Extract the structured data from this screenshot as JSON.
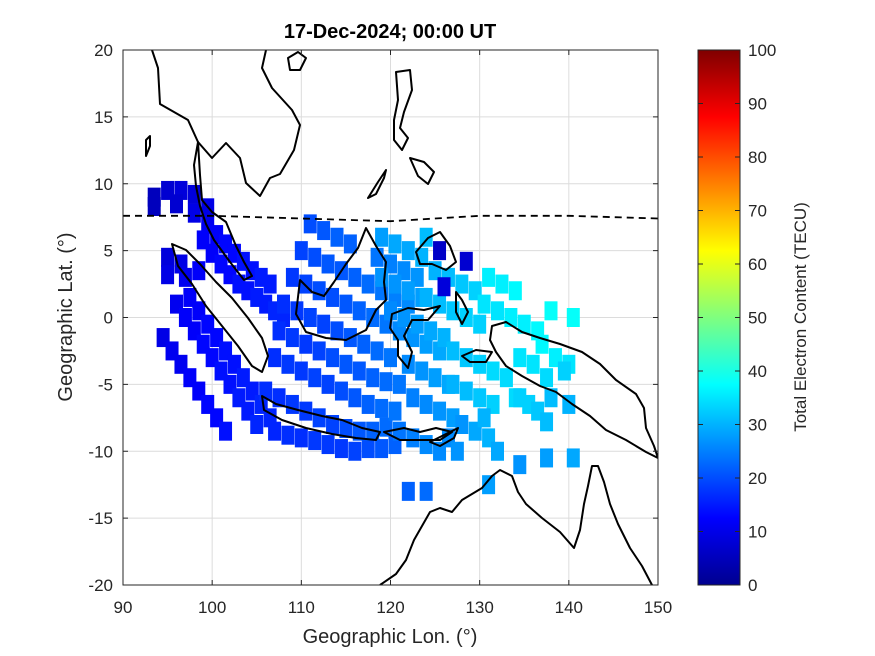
{
  "chart_data": {
    "type": "heatmap",
    "title": "17-Dec-2024; 00:00 UT",
    "xlabel": "Geographic Lon. (°)",
    "ylabel": "Geographic Lat. (°)",
    "xlim": [
      90,
      150
    ],
    "ylim": [
      -20,
      20
    ],
    "xticks": [
      "90",
      "100",
      "110",
      "120",
      "130",
      "140",
      "150"
    ],
    "yticks": [
      "20",
      "15",
      "10",
      "5",
      "0",
      "-5",
      "-10",
      "-15",
      "-20"
    ],
    "grid": true,
    "colorbar": {
      "label": "Total Electron Content (TECU)",
      "range": [
        0,
        100
      ],
      "ticks": [
        "100",
        "90",
        "80",
        "70",
        "60",
        "50",
        "40",
        "30",
        "20",
        "10",
        "0"
      ],
      "colormap": "jet"
    },
    "dip_equator": [
      [
        90,
        7.6
      ],
      [
        100,
        7.6
      ],
      [
        110,
        7.4
      ],
      [
        120,
        7.2
      ],
      [
        130,
        7.6
      ],
      [
        140,
        7.6
      ],
      [
        150,
        7.4
      ]
    ],
    "tec_cells": [
      [
        93.5,
        9.0,
        6
      ],
      [
        95,
        9.5,
        8
      ],
      [
        96.5,
        9.5,
        9
      ],
      [
        98,
        9.2,
        9
      ],
      [
        99.5,
        8.2,
        10
      ],
      [
        93.5,
        8.3,
        6
      ],
      [
        96,
        8.5,
        8
      ],
      [
        98,
        7.8,
        10
      ],
      [
        95,
        4.5,
        9
      ],
      [
        96.5,
        4.0,
        10
      ],
      [
        95,
        3.2,
        10
      ],
      [
        97,
        3.0,
        11
      ],
      [
        98.5,
        3.5,
        12
      ],
      [
        99.5,
        7.0,
        11
      ],
      [
        100.5,
        6.2,
        12
      ],
      [
        101.5,
        5.5,
        13
      ],
      [
        102.5,
        4.8,
        13
      ],
      [
        103.5,
        4.2,
        14
      ],
      [
        104.5,
        3.5,
        14
      ],
      [
        105.5,
        3.0,
        15
      ],
      [
        106.5,
        2.5,
        15
      ],
      [
        99,
        5.8,
        12
      ],
      [
        100,
        4.8,
        12
      ],
      [
        101,
        4.0,
        13
      ],
      [
        102,
        3.2,
        13
      ],
      [
        103,
        2.5,
        14
      ],
      [
        104,
        2.0,
        14
      ],
      [
        105,
        1.5,
        15
      ],
      [
        106,
        1.0,
        15
      ],
      [
        107,
        0.5,
        16
      ],
      [
        108,
        0.0,
        16
      ],
      [
        97.5,
        1.5,
        12
      ],
      [
        98.5,
        0.5,
        12
      ],
      [
        99.5,
        -0.5,
        13
      ],
      [
        100.5,
        -1.5,
        13
      ],
      [
        101.5,
        -2.5,
        14
      ],
      [
        102.5,
        -3.5,
        14
      ],
      [
        103.5,
        -4.5,
        15
      ],
      [
        104.5,
        -5.5,
        15
      ],
      [
        105.5,
        -6.5,
        16
      ],
      [
        106.5,
        -7.5,
        16
      ],
      [
        96,
        1.0,
        11
      ],
      [
        97,
        0.0,
        12
      ],
      [
        98,
        -1.0,
        12
      ],
      [
        99,
        -2.0,
        13
      ],
      [
        100,
        -3.0,
        13
      ],
      [
        101,
        -4.0,
        14
      ],
      [
        102,
        -5.0,
        14
      ],
      [
        103,
        -6.0,
        15
      ],
      [
        104,
        -7.0,
        15
      ],
      [
        105,
        -8.0,
        16
      ],
      [
        94.5,
        -1.5,
        10
      ],
      [
        95.5,
        -2.5,
        11
      ],
      [
        96.5,
        -3.5,
        11
      ],
      [
        97.5,
        -4.5,
        12
      ],
      [
        98.5,
        -5.5,
        12
      ],
      [
        99.5,
        -6.5,
        13
      ],
      [
        100.5,
        -7.5,
        13
      ],
      [
        101.5,
        -8.5,
        14
      ],
      [
        107,
        -8.5,
        16
      ],
      [
        108.5,
        -8.8,
        17
      ],
      [
        110,
        -9.0,
        17
      ],
      [
        111.5,
        -9.2,
        18
      ],
      [
        113,
        -9.5,
        18
      ],
      [
        114.5,
        -9.8,
        18
      ],
      [
        116,
        -10.0,
        19
      ],
      [
        117.5,
        -9.8,
        20
      ],
      [
        119,
        -9.8,
        21
      ],
      [
        120.5,
        -9.5,
        22
      ],
      [
        106,
        -5.5,
        17
      ],
      [
        107.5,
        -6.0,
        17
      ],
      [
        109,
        -6.5,
        18
      ],
      [
        110.5,
        -7.0,
        18
      ],
      [
        112,
        -7.5,
        19
      ],
      [
        113.5,
        -8.0,
        19
      ],
      [
        115,
        -8.3,
        20
      ],
      [
        116.5,
        -8.5,
        21
      ],
      [
        118,
        -8.5,
        22
      ],
      [
        119.5,
        -8.2,
        23
      ],
      [
        107,
        -3.0,
        17
      ],
      [
        108.5,
        -3.5,
        18
      ],
      [
        110,
        -4.0,
        18
      ],
      [
        111.5,
        -4.5,
        19
      ],
      [
        113,
        -5.0,
        19
      ],
      [
        114.5,
        -5.5,
        20
      ],
      [
        116,
        -6.0,
        21
      ],
      [
        117.5,
        -6.5,
        22
      ],
      [
        119,
        -6.8,
        23
      ],
      [
        120.5,
        -7.0,
        24
      ],
      [
        107.5,
        -1.0,
        17
      ],
      [
        109,
        -1.5,
        18
      ],
      [
        110.5,
        -2.0,
        18
      ],
      [
        112,
        -2.5,
        19
      ],
      [
        113.5,
        -3.0,
        20
      ],
      [
        115,
        -3.5,
        21
      ],
      [
        116.5,
        -4.0,
        21
      ],
      [
        118,
        -4.5,
        22
      ],
      [
        119.5,
        -4.8,
        23
      ],
      [
        121,
        -5.0,
        24
      ],
      [
        108,
        1.0,
        17
      ],
      [
        109.5,
        0.5,
        18
      ],
      [
        111,
        0.0,
        19
      ],
      [
        112.5,
        -0.5,
        19
      ],
      [
        114,
        -1.0,
        20
      ],
      [
        115.5,
        -1.5,
        21
      ],
      [
        117,
        -2.0,
        22
      ],
      [
        118.5,
        -2.5,
        23
      ],
      [
        120,
        -3.0,
        24
      ],
      [
        109,
        3.0,
        18
      ],
      [
        110.5,
        2.5,
        19
      ],
      [
        112,
        2.0,
        20
      ],
      [
        113.5,
        1.5,
        20
      ],
      [
        115,
        1.0,
        21
      ],
      [
        116.5,
        0.5,
        22
      ],
      [
        118,
        0.0,
        23
      ],
      [
        119.5,
        -0.5,
        24
      ],
      [
        121,
        -1.0,
        25
      ],
      [
        110,
        5.0,
        19
      ],
      [
        111.5,
        4.5,
        20
      ],
      [
        113,
        4.0,
        21
      ],
      [
        114.5,
        3.5,
        21
      ],
      [
        116,
        3.0,
        22
      ],
      [
        117.5,
        2.5,
        23
      ],
      [
        119,
        2.0,
        24
      ],
      [
        120.5,
        1.5,
        25
      ],
      [
        122,
        1.0,
        26
      ],
      [
        111,
        7.0,
        20
      ],
      [
        112.5,
        6.5,
        21
      ],
      [
        114,
        6.0,
        22
      ],
      [
        115.5,
        5.5,
        22
      ],
      [
        118.5,
        4.5,
        24
      ],
      [
        120,
        4.0,
        25
      ],
      [
        121.5,
        3.5,
        26
      ],
      [
        123,
        3.0,
        27
      ],
      [
        119,
        6.0,
        28
      ],
      [
        120.5,
        5.5,
        29
      ],
      [
        122,
        5.0,
        29
      ],
      [
        123.5,
        4.5,
        30
      ],
      [
        119,
        3.0,
        27
      ],
      [
        120.5,
        2.5,
        27
      ],
      [
        122,
        2.0,
        28
      ],
      [
        123.5,
        1.5,
        28
      ],
      [
        121,
        -1.0,
        26
      ],
      [
        122.5,
        -1.5,
        27
      ],
      [
        124,
        -2.0,
        28
      ],
      [
        125.5,
        -2.5,
        29
      ],
      [
        122,
        -3.5,
        26
      ],
      [
        123.5,
        -4.0,
        27
      ],
      [
        125,
        -4.5,
        28
      ],
      [
        126.5,
        -5.0,
        29
      ],
      [
        120,
        0.5,
        26
      ],
      [
        121.5,
        0.0,
        27
      ],
      [
        123,
        -0.5,
        28
      ],
      [
        124.5,
        -1.0,
        29
      ],
      [
        126,
        -1.5,
        30
      ],
      [
        124,
        1.5,
        30
      ],
      [
        125.5,
        1.0,
        31
      ],
      [
        127,
        0.5,
        32
      ],
      [
        128.5,
        0.0,
        33
      ],
      [
        130,
        -0.5,
        33
      ],
      [
        125,
        3.5,
        30
      ],
      [
        126.5,
        3.0,
        31
      ],
      [
        128,
        2.5,
        32
      ],
      [
        129.5,
        2.0,
        33
      ],
      [
        125.5,
        5.0,
        7
      ],
      [
        128.5,
        4.2,
        8
      ],
      [
        126,
        2.3,
        9
      ],
      [
        124,
        6.0,
        31
      ],
      [
        127,
        -2.5,
        31
      ],
      [
        128.5,
        -3.0,
        32
      ],
      [
        130,
        -3.5,
        33
      ],
      [
        131.5,
        -4.0,
        34
      ],
      [
        133,
        -4.5,
        34
      ],
      [
        127,
        -5.0,
        30
      ],
      [
        128.5,
        -5.5,
        31
      ],
      [
        130,
        -6.0,
        32
      ],
      [
        131.5,
        -6.5,
        33
      ],
      [
        130.5,
        1.0,
        35
      ],
      [
        132,
        0.5,
        35
      ],
      [
        133.5,
        0.0,
        36
      ],
      [
        135,
        -0.5,
        36
      ],
      [
        136.5,
        -1.0,
        37
      ],
      [
        131,
        3.0,
        36
      ],
      [
        132.5,
        2.5,
        36
      ],
      [
        134,
        2.0,
        37
      ],
      [
        138,
        0.5,
        38
      ],
      [
        140.5,
        0.0,
        38
      ],
      [
        137,
        -2.0,
        37
      ],
      [
        138.5,
        -3.0,
        36
      ],
      [
        140,
        -3.5,
        35
      ],
      [
        134.5,
        -3.0,
        35
      ],
      [
        136,
        -3.5,
        35
      ],
      [
        137.5,
        -4.5,
        34
      ],
      [
        139.5,
        -4.0,
        33
      ],
      [
        134,
        -6.0,
        34
      ],
      [
        135.5,
        -6.5,
        33
      ],
      [
        138,
        -6.0,
        31
      ],
      [
        140,
        -6.5,
        30
      ],
      [
        122.5,
        -6.0,
        25
      ],
      [
        124,
        -6.5,
        26
      ],
      [
        125.5,
        -7.0,
        27
      ],
      [
        127,
        -7.5,
        28
      ],
      [
        128,
        -8.0,
        27
      ],
      [
        129.5,
        -8.5,
        29
      ],
      [
        131,
        -9.0,
        30
      ],
      [
        121,
        -8.5,
        24
      ],
      [
        122.5,
        -9.0,
        25
      ],
      [
        124,
        -9.5,
        26
      ],
      [
        125.5,
        -10.0,
        26
      ],
      [
        130.5,
        -7.5,
        30
      ],
      [
        134.5,
        -6.0,
        33
      ],
      [
        136.5,
        -7.0,
        32
      ],
      [
        137.5,
        -7.8,
        31
      ],
      [
        132,
        -10.0,
        29
      ],
      [
        134.5,
        -11.0,
        27
      ],
      [
        137.5,
        -10.5,
        28
      ],
      [
        140.5,
        -10.5,
        29
      ],
      [
        126.5,
        -9.0,
        26
      ],
      [
        127.5,
        -10.0,
        27
      ],
      [
        131,
        -12.5,
        28
      ],
      [
        122,
        -13.0,
        22
      ],
      [
        124,
        -13.0,
        23
      ]
    ]
  }
}
